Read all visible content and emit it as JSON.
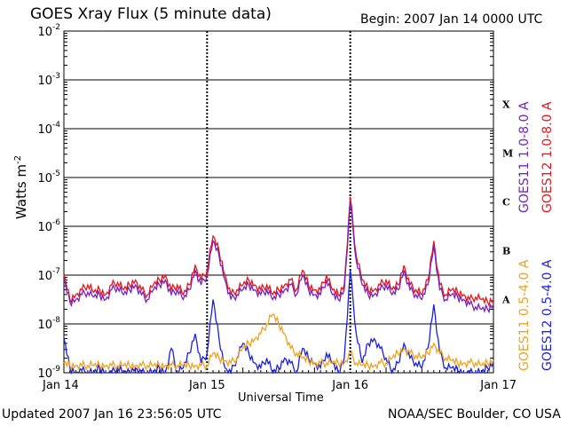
{
  "header": {
    "title": "GOES Xray Flux (5 minute data)",
    "begin": "Begin:  2007 Jan 14 0000 UTC"
  },
  "footer": {
    "updated": "Updated 2007 Jan 16 23:56:05 UTC",
    "credit": "NOAA/SEC Boulder, CO USA"
  },
  "chart_data": {
    "type": "line",
    "xlabel": "Universal Time",
    "ylabel": "Watts m",
    "ylabel_superscript": "-2",
    "y_scale": "log",
    "ylim_exponents": [
      -9,
      -2
    ],
    "y_ticks": [
      {
        "base": "10",
        "exp": "-2"
      },
      {
        "base": "10",
        "exp": "-3"
      },
      {
        "base": "10",
        "exp": "-4"
      },
      {
        "base": "10",
        "exp": "-5"
      },
      {
        "base": "10",
        "exp": "-6"
      },
      {
        "base": "10",
        "exp": "-7"
      },
      {
        "base": "10",
        "exp": "-8"
      },
      {
        "base": "10",
        "exp": "-9"
      }
    ],
    "x_ticks": [
      "Jan 14",
      "Jan 15",
      "Jan 16",
      "Jan 17"
    ],
    "xlim_hours": [
      0,
      72
    ],
    "flare_classes": [
      "X",
      "M",
      "C",
      "B",
      "A"
    ],
    "legend_right": [
      {
        "text": "GOES11 1.0-8.0 A",
        "color": "#7a1fbf"
      },
      {
        "text": "GOES12 1.0-8.0 A",
        "color": "#e8141c"
      },
      {
        "text": "GOES11 0.5-4.0 A",
        "color": "#f0a21e"
      },
      {
        "text": "GOES12 0.5-4.0 A",
        "color": "#1a1fe8"
      }
    ],
    "series": [
      {
        "name": "GOES12 1.0-8.0 A",
        "color": "#e8141c",
        "x": [
          0,
          1,
          2,
          3,
          4,
          5,
          6,
          7,
          8,
          9,
          10,
          11,
          12,
          13,
          14,
          15,
          16,
          17,
          18,
          19,
          20,
          21,
          22,
          23,
          24,
          25,
          26,
          27,
          28,
          29,
          30,
          31,
          32,
          33,
          34,
          35,
          36,
          37,
          38,
          39,
          40,
          41,
          42,
          43,
          44,
          45,
          46,
          47,
          48,
          49,
          50,
          51,
          52,
          53,
          54,
          55,
          56,
          57,
          58,
          59,
          60,
          61,
          62,
          63,
          64,
          65,
          66,
          67,
          68,
          69,
          70,
          71,
          72
        ],
        "logy": [
          -7.0,
          -7.5,
          -7.4,
          -7.3,
          -7.2,
          -7.35,
          -7.3,
          -7.4,
          -7.2,
          -7.15,
          -7.3,
          -7.2,
          -7.1,
          -7.3,
          -7.4,
          -7.2,
          -7.1,
          -7.0,
          -7.3,
          -7.2,
          -7.4,
          -7.2,
          -6.8,
          -7.1,
          -6.9,
          -6.2,
          -6.5,
          -7.0,
          -7.4,
          -7.3,
          -7.2,
          -7.1,
          -7.2,
          -7.3,
          -7.2,
          -7.4,
          -7.3,
          -7.2,
          -7.1,
          -7.3,
          -6.9,
          -7.2,
          -7.3,
          -7.3,
          -7.0,
          -7.3,
          -7.4,
          -7.2,
          -5.4,
          -6.6,
          -7.1,
          -7.3,
          -7.3,
          -7.2,
          -7.1,
          -7.3,
          -7.2,
          -6.8,
          -7.2,
          -7.3,
          -7.4,
          -7.1,
          -6.3,
          -7.2,
          -7.4,
          -7.3,
          -7.35,
          -7.4,
          -7.5,
          -7.45,
          -7.5,
          -7.55,
          -7.5
        ]
      },
      {
        "name": "GOES11 1.0-8.0 A",
        "color": "#7a1fbf",
        "x": [
          0,
          1,
          2,
          3,
          4,
          5,
          6,
          7,
          8,
          9,
          10,
          11,
          12,
          13,
          14,
          15,
          16,
          17,
          18,
          19,
          20,
          21,
          22,
          23,
          24,
          25,
          26,
          27,
          28,
          29,
          30,
          31,
          32,
          33,
          34,
          35,
          36,
          37,
          38,
          39,
          40,
          41,
          42,
          43,
          44,
          45,
          46,
          47,
          48,
          49,
          50,
          51,
          52,
          53,
          54,
          55,
          56,
          57,
          58,
          59,
          60,
          61,
          62,
          63,
          64,
          65,
          66,
          67,
          68,
          69,
          70,
          71,
          72
        ],
        "logy": [
          -7.1,
          -7.55,
          -7.5,
          -7.4,
          -7.35,
          -7.45,
          -7.4,
          -7.5,
          -7.3,
          -7.25,
          -7.4,
          -7.3,
          -7.2,
          -7.4,
          -7.5,
          -7.3,
          -7.2,
          -7.1,
          -7.4,
          -7.3,
          -7.5,
          -7.3,
          -6.9,
          -7.2,
          -7.0,
          -6.3,
          -6.6,
          -7.1,
          -7.5,
          -7.4,
          -7.3,
          -7.2,
          -7.3,
          -7.4,
          -7.3,
          -7.5,
          -7.4,
          -7.3,
          -7.2,
          -7.4,
          -7.0,
          -7.3,
          -7.4,
          -7.4,
          -7.1,
          -7.4,
          -7.5,
          -7.3,
          -5.5,
          -6.7,
          -7.2,
          -7.4,
          -7.4,
          -7.3,
          -7.2,
          -7.4,
          -7.3,
          -6.9,
          -7.3,
          -7.4,
          -7.5,
          -7.2,
          -6.4,
          -7.3,
          -7.5,
          -7.4,
          -7.45,
          -7.5,
          -7.6,
          -7.65,
          -7.7,
          -7.7,
          -7.6
        ]
      },
      {
        "name": "GOES12 0.5-4.0 A",
        "color": "#1a1fe8",
        "x": [
          0,
          1,
          2,
          3,
          4,
          5,
          6,
          7,
          8,
          9,
          10,
          11,
          12,
          13,
          14,
          15,
          16,
          17,
          18,
          19,
          20,
          21,
          22,
          23,
          24,
          25,
          26,
          27,
          28,
          29,
          30,
          31,
          32,
          33,
          34,
          35,
          36,
          37,
          38,
          39,
          40,
          41,
          42,
          43,
          44,
          45,
          46,
          47,
          48,
          49,
          50,
          51,
          52,
          53,
          54,
          55,
          56,
          57,
          58,
          59,
          60,
          61,
          62,
          63,
          64,
          65,
          66,
          67,
          68,
          69,
          70,
          71,
          72
        ],
        "logy": [
          -8.3,
          -8.9,
          -9.0,
          -8.95,
          -9.0,
          -9.0,
          -8.9,
          -9.0,
          -9.0,
          -8.9,
          -9.0,
          -9.0,
          -8.9,
          -9.0,
          -9.0,
          -9.0,
          -8.9,
          -9.0,
          -8.5,
          -9.0,
          -8.9,
          -8.6,
          -8.2,
          -8.8,
          -8.6,
          -7.5,
          -8.3,
          -8.9,
          -9.0,
          -8.7,
          -8.4,
          -8.6,
          -8.8,
          -8.9,
          -8.7,
          -9.0,
          -8.9,
          -8.7,
          -8.8,
          -9.0,
          -8.5,
          -8.7,
          -8.8,
          -8.9,
          -8.6,
          -8.8,
          -9.0,
          -8.7,
          -6.9,
          -8.2,
          -8.8,
          -8.4,
          -8.3,
          -8.5,
          -8.7,
          -9.0,
          -8.8,
          -8.4,
          -8.7,
          -8.8,
          -8.9,
          -8.5,
          -7.6,
          -8.6,
          -8.9,
          -8.9,
          -8.95,
          -9.0,
          -9.0,
          -9.0,
          -9.0,
          -8.9,
          -8.8
        ]
      },
      {
        "name": "GOES11 0.5-4.0 A",
        "color": "#f0a21e",
        "x": [
          0,
          1,
          2,
          3,
          4,
          5,
          6,
          7,
          8,
          9,
          10,
          11,
          12,
          13,
          14,
          15,
          16,
          17,
          18,
          19,
          20,
          21,
          22,
          23,
          24,
          25,
          26,
          27,
          28,
          29,
          30,
          31,
          32,
          33,
          34,
          35,
          36,
          37,
          38,
          39,
          40,
          41,
          42,
          43,
          44,
          45,
          46,
          47,
          48,
          49,
          50,
          51,
          52,
          53,
          54,
          55,
          56,
          57,
          58,
          59,
          60,
          61,
          62,
          63,
          64,
          65,
          66,
          67,
          68,
          69,
          70,
          71,
          72
        ],
        "logy": [
          -8.8,
          -8.85,
          -8.85,
          -8.85,
          -8.85,
          -8.85,
          -8.85,
          -8.85,
          -8.85,
          -8.85,
          -8.85,
          -8.85,
          -8.85,
          -8.85,
          -8.85,
          -8.85,
          -8.85,
          -8.85,
          -8.85,
          -8.85,
          -8.85,
          -8.85,
          -8.85,
          -8.85,
          -8.85,
          -8.6,
          -8.7,
          -8.75,
          -8.8,
          -8.7,
          -8.5,
          -8.4,
          -8.3,
          -8.2,
          -8.0,
          -7.8,
          -8.0,
          -8.2,
          -8.5,
          -8.6,
          -8.7,
          -8.75,
          -8.8,
          -8.8,
          -8.8,
          -8.8,
          -8.8,
          -8.8,
          -8.6,
          -8.8,
          -8.85,
          -8.85,
          -8.85,
          -8.8,
          -8.8,
          -8.7,
          -8.6,
          -8.5,
          -8.6,
          -8.65,
          -8.7,
          -8.6,
          -8.4,
          -8.6,
          -8.7,
          -8.75,
          -8.8,
          -8.8,
          -8.8,
          -8.8,
          -8.85,
          -8.8,
          -8.75
        ]
      }
    ]
  }
}
